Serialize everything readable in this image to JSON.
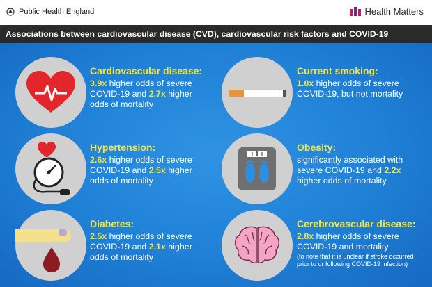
{
  "header": {
    "org": "Public Health England",
    "brand": "Health Matters",
    "title": "Associations between cardiovascular disease (CVD), cardiovascular risk factors and COVID-19"
  },
  "colors": {
    "highlight": "#f5e43a",
    "panel": "#1f80d6",
    "titlebar": "#2a2a2a",
    "circle": "#d0d0d0"
  },
  "items": {
    "cvd": {
      "icon": "heart-ecg-icon",
      "title": "Cardiovascular disease:",
      "v1": "3.9x",
      "t1": " higher odds of severe COVID-19 and ",
      "v2": "2.7x",
      "t2": " higher odds of mortality"
    },
    "smoking": {
      "icon": "cigarette-icon",
      "title": "Current smoking:",
      "v1": "1.8x",
      "t1": " higher odds of severe COVID-19, but not mortality"
    },
    "hypertension": {
      "icon": "blood-pressure-gauge-icon",
      "title": "Hypertension:",
      "v1": "2.6x",
      "t1": " higher odds of severe COVID-19 and ",
      "v2": "2.5x",
      "t2": " higher odds of mortality"
    },
    "obesity": {
      "icon": "weighing-scale-icon",
      "title": "Obesity:",
      "t0": "significantly associated with severe COVID-19 and ",
      "v1": "2.2x",
      "t1": " higher odds of mortality"
    },
    "diabetes": {
      "icon": "blood-drop-finger-icon",
      "title": "Diabetes:",
      "v1": "2.5x",
      "t1": " higher odds of severe COVID-19 and ",
      "v2": "2.1x",
      "t2": " higher odds of mortality"
    },
    "cerebro": {
      "icon": "brain-icon",
      "title": "Cerebrovascular disease:",
      "v1": "2.8x",
      "t1": " higher odds of severe COVID-19 and mortality",
      "note": "(to note that it is unclear if stroke occurred prior to or following COVID-19 infection)"
    }
  }
}
